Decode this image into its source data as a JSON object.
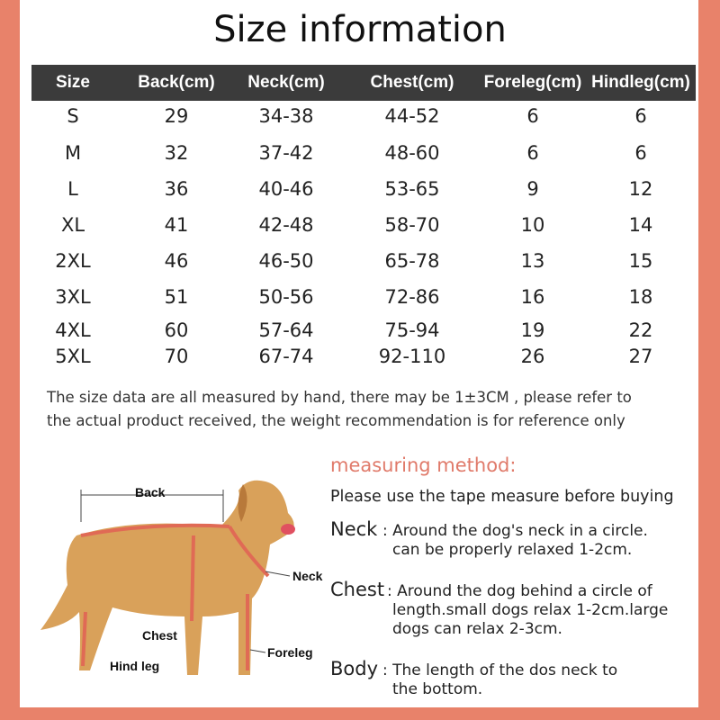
{
  "title": "Size information",
  "colors": {
    "frame": "#e8826a",
    "header_bg": "#3b3b3b",
    "accent": "#e07a6a",
    "dog": "#d9a15a",
    "harness": "#e06a55"
  },
  "table": {
    "headers": [
      "Size",
      "Back(cm)",
      "Neck(cm)",
      "Chest(cm)",
      "Foreleg(cm)",
      "Hindleg(cm)"
    ],
    "rows": [
      [
        "S",
        "29",
        "34-38",
        "44-52",
        "6",
        "6"
      ],
      [
        "M",
        "32",
        "37-42",
        "48-60",
        "6",
        "6"
      ],
      [
        "L",
        "36",
        "40-46",
        "53-65",
        "9",
        "12"
      ],
      [
        "XL",
        "41",
        "42-48",
        "58-70",
        "10",
        "14"
      ],
      [
        "2XL",
        "46",
        "46-50",
        "65-78",
        "13",
        "15"
      ],
      [
        "3XL",
        "51",
        "50-56",
        "72-86",
        "16",
        "18"
      ],
      [
        "4XL",
        "60",
        "57-64",
        "75-94",
        "19",
        "22"
      ],
      [
        "5XL",
        "70",
        "67-74",
        "92-110",
        "26",
        "27"
      ]
    ]
  },
  "notes": [
    "The size data are all measured by hand, there may be 1±3CM , please refer to",
    "the actual product received, the weight recommendation is for reference only"
  ],
  "dog_labels": {
    "back": "Back",
    "neck": "Neck",
    "chest": "Chest",
    "foreleg": "Foreleg",
    "hind_leg": "Hind leg"
  },
  "measuring": {
    "title": "measuring method:",
    "intro": "Please use the tape measure before buying",
    "items": [
      {
        "term": "Neck",
        "lines": [
          ": Around the dog's neck in a circle.",
          "can be properly relaxed 1-2cm."
        ]
      },
      {
        "term": "Chest",
        "lines": [
          ": Around the dog behind a circle of",
          "length.small dogs relax 1-2cm.large",
          "dogs can relax 2-3cm."
        ]
      },
      {
        "term": "Body",
        "lines": [
          ": The length of the dos neck to",
          "the bottom."
        ]
      }
    ]
  }
}
